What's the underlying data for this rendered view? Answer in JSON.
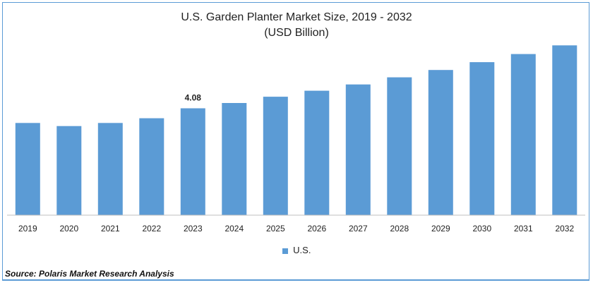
{
  "chart_data": {
    "type": "bar",
    "title": "U.S. Garden Planter Market Size, 2019 - 2032",
    "subtitle": "(USD Billion)",
    "categories": [
      "2019",
      "2020",
      "2021",
      "2022",
      "2023",
      "2024",
      "2025",
      "2026",
      "2027",
      "2028",
      "2029",
      "2030",
      "2031",
      "2032"
    ],
    "series": [
      {
        "name": "U.S.",
        "values": [
          3.52,
          3.4,
          3.52,
          3.7,
          4.08,
          4.28,
          4.52,
          4.75,
          4.99,
          5.26,
          5.54,
          5.84,
          6.15,
          6.48
        ]
      }
    ],
    "data_labels": [
      {
        "category": "2023",
        "text": "4.08"
      }
    ],
    "ylim": [
      0,
      7
    ],
    "bar_color": "#5b9bd5",
    "legend": "bottom-center",
    "grid": false
  },
  "source": "Source: Polaris Market Research Analysis"
}
